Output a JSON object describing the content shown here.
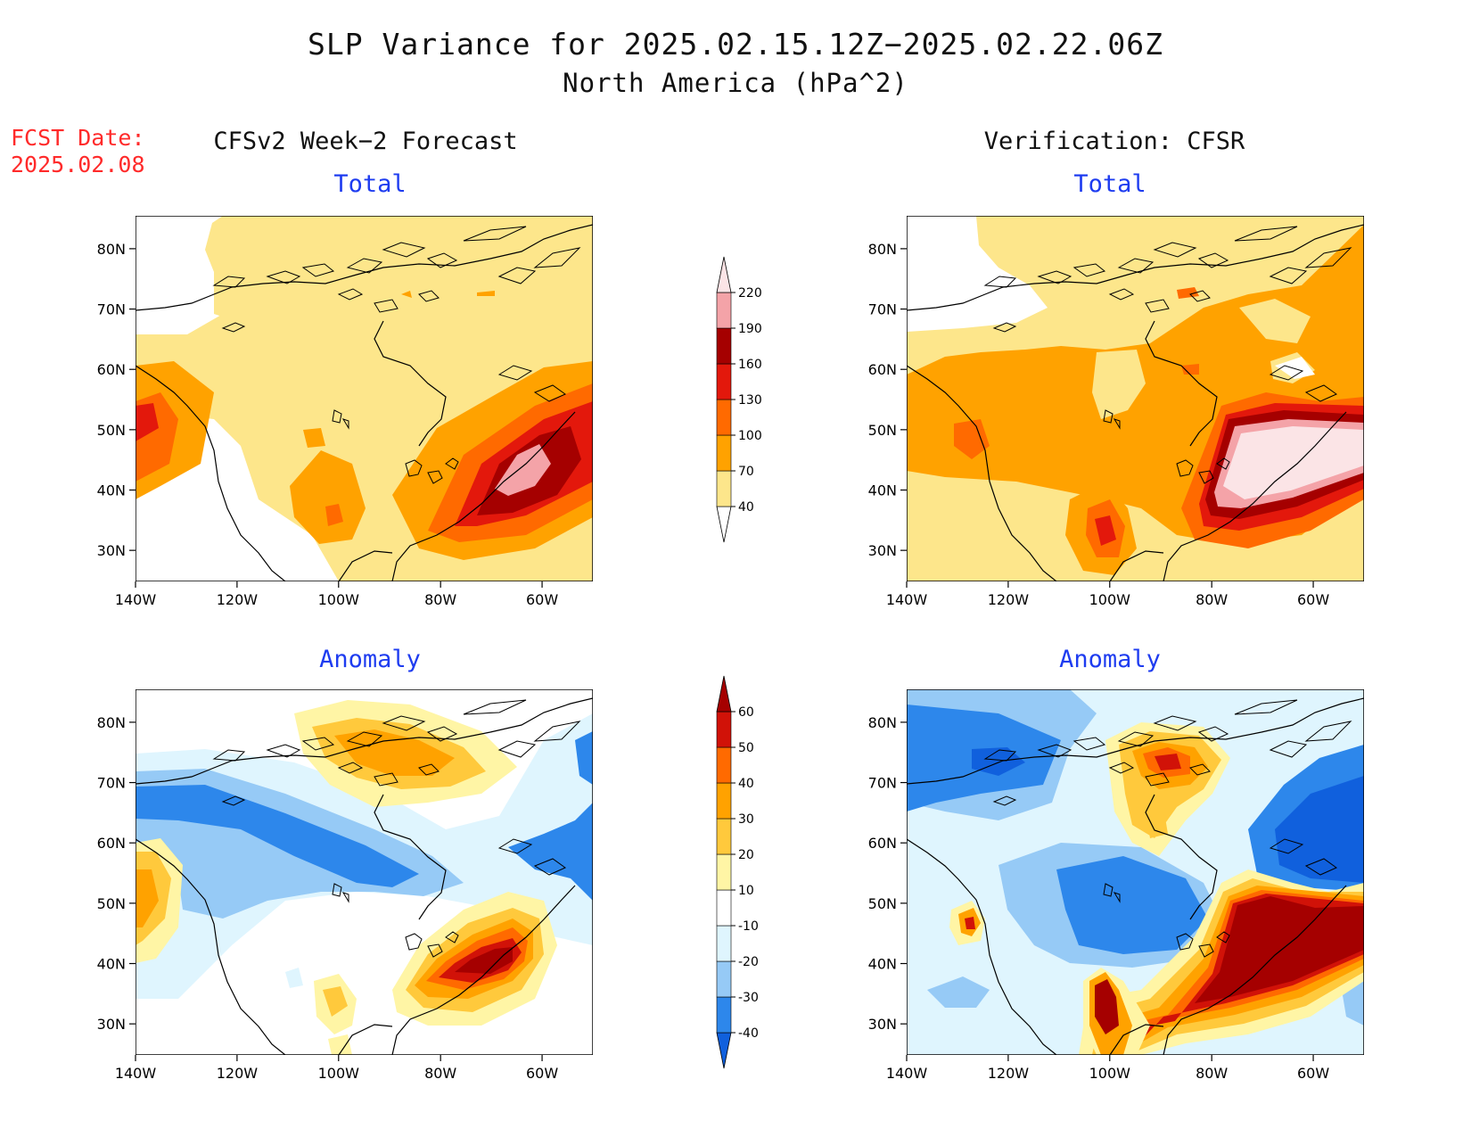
{
  "title": "SLP Variance for 2025.02.15.12Z−2025.02.22.06Z",
  "subtitle": "North America (hPa^2)",
  "fcst_label": "FCST Date:",
  "fcst_date": "2025.02.08",
  "left_header": "CFSv2 Week−2 Forecast",
  "right_header": "Verification: CFSR",
  "lat_labels": [
    "80N",
    "70N",
    "60N",
    "50N",
    "40N",
    "30N"
  ],
  "lon_labels": [
    "140W",
    "120W",
    "100W",
    "80W",
    "60W"
  ],
  "panels": [
    {
      "id": "forecast-total",
      "title": "Total"
    },
    {
      "id": "verification-total",
      "title": "Total"
    },
    {
      "id": "forecast-anomaly",
      "title": "Anomaly"
    },
    {
      "id": "verification-anomaly",
      "title": "Anomaly"
    }
  ],
  "total_colorbar": {
    "levels": [
      "40",
      "70",
      "100",
      "130",
      "160",
      "190",
      "220"
    ],
    "colors": [
      "#ffffff",
      "#fde68b",
      "#ffa200",
      "#ff6a00",
      "#e3180c",
      "#a50000",
      "#f4a3a8",
      "#fbe4e6"
    ]
  },
  "anomaly_colorbar": {
    "levels": [
      "-40",
      "-30",
      "-20",
      "-10",
      "10",
      "20",
      "30",
      "40",
      "50",
      "60"
    ],
    "colors": [
      "#1060dd",
      "#2d87eb",
      "#96caf6",
      "#dff5fe",
      "#ffffff",
      "#fff5a5",
      "#ffc93c",
      "#ffa200",
      "#ff6a00",
      "#d11208",
      "#a50000"
    ]
  }
}
